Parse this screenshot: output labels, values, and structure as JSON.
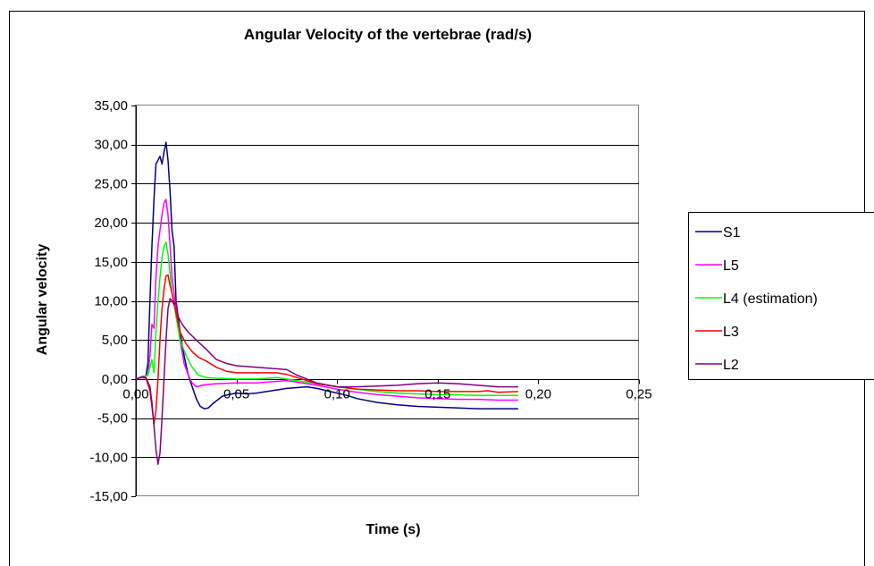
{
  "chart_data": {
    "type": "line",
    "title": "Angular Velocity of the vertebrae (rad/s)",
    "xlabel": "Time (s)",
    "ylabel": "Angular velocity",
    "xlim": [
      0,
      0.25
    ],
    "ylim": [
      -15,
      35
    ],
    "x_ticks": [
      0,
      0.05,
      0.1,
      0.15,
      0.2,
      0.25
    ],
    "x_tick_labels": [
      "0,00",
      "0,05",
      "0,10",
      "0,15",
      "0,20",
      "0,25"
    ],
    "y_ticks": [
      -15,
      -10,
      -5,
      0,
      5,
      10,
      15,
      20,
      25,
      30,
      35
    ],
    "y_tick_labels": [
      "-15,00",
      "-10,00",
      "-5,00",
      "0,00",
      "5,00",
      "10,00",
      "15,00",
      "20,00",
      "25,00",
      "30,00",
      "35,00"
    ],
    "grid": "horizontal",
    "legend_position": "right",
    "series": [
      {
        "name": "S1",
        "color": "#000080",
        "points": [
          [
            0,
            0
          ],
          [
            0.003,
            0.3
          ],
          [
            0.005,
            0.4
          ],
          [
            0.006,
            2
          ],
          [
            0.007,
            10
          ],
          [
            0.008,
            17
          ],
          [
            0.009,
            23
          ],
          [
            0.01,
            27.5
          ],
          [
            0.011,
            28
          ],
          [
            0.012,
            28.5
          ],
          [
            0.013,
            27.5
          ],
          [
            0.014,
            29
          ],
          [
            0.015,
            30.3
          ],
          [
            0.016,
            28
          ],
          [
            0.017,
            24
          ],
          [
            0.018,
            19
          ],
          [
            0.019,
            17
          ],
          [
            0.02,
            10
          ],
          [
            0.022,
            6
          ],
          [
            0.024,
            3
          ],
          [
            0.026,
            0.5
          ],
          [
            0.028,
            -1
          ],
          [
            0.03,
            -2.5
          ],
          [
            0.032,
            -3.5
          ],
          [
            0.034,
            -3.8
          ],
          [
            0.036,
            -3.7
          ],
          [
            0.038,
            -3.2
          ],
          [
            0.04,
            -2.8
          ],
          [
            0.043,
            -2.2
          ],
          [
            0.046,
            -2
          ],
          [
            0.05,
            -1.8
          ],
          [
            0.055,
            -1.9
          ],
          [
            0.06,
            -1.8
          ],
          [
            0.065,
            -1.6
          ],
          [
            0.07,
            -1.4
          ],
          [
            0.075,
            -1.2
          ],
          [
            0.08,
            -1.1
          ],
          [
            0.085,
            -1.0
          ],
          [
            0.09,
            -1.2
          ],
          [
            0.095,
            -1.5
          ],
          [
            0.1,
            -1.8
          ],
          [
            0.105,
            -2.1
          ],
          [
            0.11,
            -2.5
          ],
          [
            0.12,
            -3.0
          ],
          [
            0.13,
            -3.3
          ],
          [
            0.14,
            -3.5
          ],
          [
            0.15,
            -3.6
          ],
          [
            0.16,
            -3.7
          ],
          [
            0.17,
            -3.8
          ],
          [
            0.18,
            -3.8
          ],
          [
            0.19,
            -3.8
          ]
        ]
      },
      {
        "name": "L5",
        "color": "#FF00FF",
        "points": [
          [
            0,
            0
          ],
          [
            0.004,
            0.3
          ],
          [
            0.006,
            0.5
          ],
          [
            0.007,
            3
          ],
          [
            0.008,
            7
          ],
          [
            0.009,
            6.5
          ],
          [
            0.01,
            13
          ],
          [
            0.011,
            17
          ],
          [
            0.012,
            19
          ],
          [
            0.013,
            21
          ],
          [
            0.014,
            22.5
          ],
          [
            0.015,
            23
          ],
          [
            0.016,
            21
          ],
          [
            0.017,
            17
          ],
          [
            0.018,
            13
          ],
          [
            0.02,
            9
          ],
          [
            0.022,
            5
          ],
          [
            0.024,
            2
          ],
          [
            0.026,
            0.5
          ],
          [
            0.028,
            -0.5
          ],
          [
            0.03,
            -1
          ],
          [
            0.033,
            -0.8
          ],
          [
            0.036,
            -0.7
          ],
          [
            0.04,
            -0.6
          ],
          [
            0.05,
            -0.5
          ],
          [
            0.06,
            -0.5
          ],
          [
            0.07,
            -0.3
          ],
          [
            0.075,
            -0.2
          ],
          [
            0.08,
            -0.4
          ],
          [
            0.09,
            -0.8
          ],
          [
            0.1,
            -1.3
          ],
          [
            0.11,
            -1.7
          ],
          [
            0.12,
            -2.0
          ],
          [
            0.13,
            -2.2
          ],
          [
            0.14,
            -2.4
          ],
          [
            0.15,
            -2.5
          ],
          [
            0.16,
            -2.6
          ],
          [
            0.17,
            -2.6
          ],
          [
            0.18,
            -2.7
          ],
          [
            0.19,
            -2.7
          ]
        ]
      },
      {
        "name": "L4 (estimation)",
        "color": "#00FF00",
        "points": [
          [
            0,
            0
          ],
          [
            0.004,
            0.3
          ],
          [
            0.006,
            0.5
          ],
          [
            0.007,
            1.5
          ],
          [
            0.008,
            2.5
          ],
          [
            0.009,
            0.8
          ],
          [
            0.01,
            6
          ],
          [
            0.011,
            10
          ],
          [
            0.012,
            13
          ],
          [
            0.013,
            15.5
          ],
          [
            0.014,
            17
          ],
          [
            0.015,
            17.5
          ],
          [
            0.016,
            16
          ],
          [
            0.017,
            13.5
          ],
          [
            0.018,
            11
          ],
          [
            0.02,
            8
          ],
          [
            0.022,
            5
          ],
          [
            0.025,
            3
          ],
          [
            0.028,
            1.5
          ],
          [
            0.031,
            0.5
          ],
          [
            0.035,
            0.2
          ],
          [
            0.04,
            0.1
          ],
          [
            0.05,
            0
          ],
          [
            0.06,
            0
          ],
          [
            0.07,
            0.2
          ],
          [
            0.08,
            -0.2
          ],
          [
            0.09,
            -0.6
          ],
          [
            0.1,
            -1.0
          ],
          [
            0.11,
            -1.3
          ],
          [
            0.12,
            -1.6
          ],
          [
            0.13,
            -1.8
          ],
          [
            0.14,
            -1.9
          ],
          [
            0.15,
            -2.0
          ],
          [
            0.16,
            -2.0
          ],
          [
            0.17,
            -2.1
          ],
          [
            0.18,
            -2.1
          ],
          [
            0.19,
            -2.1
          ]
        ]
      },
      {
        "name": "L3",
        "color": "#FF0000",
        "points": [
          [
            0,
            0
          ],
          [
            0.003,
            0.2
          ],
          [
            0.005,
            0.1
          ],
          [
            0.007,
            -1.5
          ],
          [
            0.008,
            -3.5
          ],
          [
            0.009,
            -5.8
          ],
          [
            0.01,
            -4
          ],
          [
            0.011,
            0
          ],
          [
            0.012,
            5
          ],
          [
            0.013,
            9
          ],
          [
            0.014,
            11.5
          ],
          [
            0.015,
            13.2
          ],
          [
            0.016,
            13.3
          ],
          [
            0.017,
            12
          ],
          [
            0.018,
            11
          ],
          [
            0.02,
            8.5
          ],
          [
            0.022,
            6
          ],
          [
            0.025,
            4.5
          ],
          [
            0.028,
            3.5
          ],
          [
            0.031,
            2.8
          ],
          [
            0.035,
            2.3
          ],
          [
            0.04,
            1.5
          ],
          [
            0.045,
            1
          ],
          [
            0.05,
            0.8
          ],
          [
            0.06,
            0.8
          ],
          [
            0.07,
            0.8
          ],
          [
            0.075,
            0.6
          ],
          [
            0.08,
            0.2
          ],
          [
            0.085,
            -0.2
          ],
          [
            0.09,
            -0.6
          ],
          [
            0.1,
            -1.0
          ],
          [
            0.11,
            -1.3
          ],
          [
            0.12,
            -1.4
          ],
          [
            0.13,
            -1.5
          ],
          [
            0.14,
            -1.5
          ],
          [
            0.15,
            -1.6
          ],
          [
            0.16,
            -1.6
          ],
          [
            0.17,
            -1.6
          ],
          [
            0.175,
            -1.5
          ],
          [
            0.18,
            -1.7
          ],
          [
            0.19,
            -1.6
          ]
        ]
      },
      {
        "name": "L2",
        "color": "#800080",
        "points": [
          [
            0,
            0
          ],
          [
            0.003,
            0.3
          ],
          [
            0.005,
            0.2
          ],
          [
            0.007,
            -1
          ],
          [
            0.008,
            -3
          ],
          [
            0.009,
            -6
          ],
          [
            0.01,
            -9
          ],
          [
            0.011,
            -10.9
          ],
          [
            0.012,
            -9.5
          ],
          [
            0.013,
            -5
          ],
          [
            0.014,
            0
          ],
          [
            0.015,
            5
          ],
          [
            0.016,
            9
          ],
          [
            0.017,
            10.3
          ],
          [
            0.018,
            10
          ],
          [
            0.019,
            9.5
          ],
          [
            0.02,
            9.8
          ],
          [
            0.021,
            8
          ],
          [
            0.023,
            7
          ],
          [
            0.026,
            6
          ],
          [
            0.03,
            5
          ],
          [
            0.035,
            3.8
          ],
          [
            0.04,
            2.5
          ],
          [
            0.045,
            2
          ],
          [
            0.05,
            1.7
          ],
          [
            0.06,
            1.5
          ],
          [
            0.07,
            1.3
          ],
          [
            0.075,
            1.2
          ],
          [
            0.08,
            0.5
          ],
          [
            0.085,
            0
          ],
          [
            0.09,
            -0.5
          ],
          [
            0.1,
            -1.0
          ],
          [
            0.11,
            -1.0
          ],
          [
            0.12,
            -0.9
          ],
          [
            0.13,
            -0.8
          ],
          [
            0.14,
            -0.6
          ],
          [
            0.15,
            -0.5
          ],
          [
            0.16,
            -0.6
          ],
          [
            0.17,
            -0.8
          ],
          [
            0.18,
            -1.0
          ],
          [
            0.19,
            -1.0
          ]
        ]
      }
    ]
  }
}
